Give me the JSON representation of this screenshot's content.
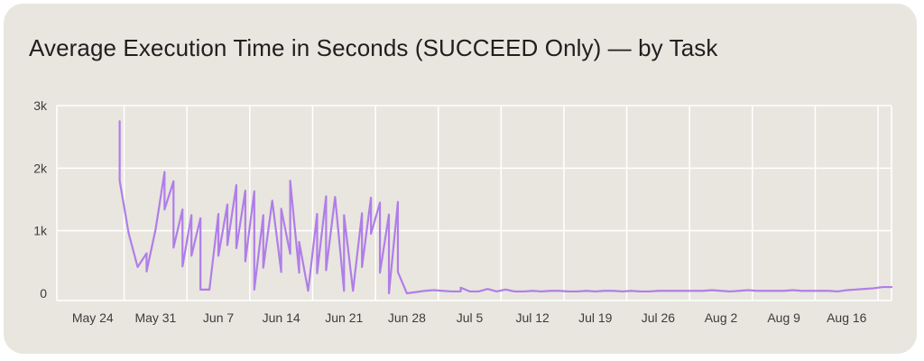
{
  "chart_data": {
    "type": "line",
    "title": "Average Execution Time in Seconds (SUCCEED Only) — by Task",
    "xlabel": "",
    "ylabel": "",
    "ylim": [
      0,
      3000
    ],
    "yticks": [
      0,
      1000,
      2000,
      3000
    ],
    "ytick_labels": [
      "0",
      "1k",
      "2k",
      "3k"
    ],
    "xlim": [
      "2024-05-20",
      "2024-08-21"
    ],
    "xticks": [
      "2024-05-24",
      "2024-05-31",
      "2024-06-07",
      "2024-06-14",
      "2024-06-21",
      "2024-06-28",
      "2024-07-05",
      "2024-07-12",
      "2024-07-19",
      "2024-07-26",
      "2024-08-02",
      "2024-08-09",
      "2024-08-16"
    ],
    "xtick_labels": [
      "May 24",
      "May 31",
      "Jun 7",
      "Jun 14",
      "Jun 21",
      "Jun 28",
      "Jul 5",
      "Jul 12",
      "Jul 19",
      "Jul 26",
      "Aug 2",
      "Aug 9",
      "Aug 16"
    ],
    "grid": true,
    "line_color": "#b07ee8",
    "series": [
      {
        "x": [
          "2024-05-27",
          "2024-05-27",
          "2024-05-28",
          "2024-05-29",
          "2024-05-30",
          "2024-05-30",
          "2024-05-31",
          "2024-06-01",
          "2024-06-01",
          "2024-06-02",
          "2024-06-02",
          "2024-06-03",
          "2024-06-03",
          "2024-06-04",
          "2024-06-04",
          "2024-06-05",
          "2024-06-05",
          "2024-06-06",
          "2024-06-07",
          "2024-06-07",
          "2024-06-08",
          "2024-06-08",
          "2024-06-09",
          "2024-06-09",
          "2024-06-10",
          "2024-06-10",
          "2024-06-11",
          "2024-06-11",
          "2024-06-12",
          "2024-06-12",
          "2024-06-13",
          "2024-06-14",
          "2024-06-14",
          "2024-06-15",
          "2024-06-15",
          "2024-06-16",
          "2024-06-16",
          "2024-06-17",
          "2024-06-18",
          "2024-06-18",
          "2024-06-19",
          "2024-06-19",
          "2024-06-20",
          "2024-06-21",
          "2024-06-21",
          "2024-06-22",
          "2024-06-23",
          "2024-06-23",
          "2024-06-24",
          "2024-06-24",
          "2024-06-25",
          "2024-06-25",
          "2024-06-26",
          "2024-06-26",
          "2024-06-27",
          "2024-06-27",
          "2024-06-28",
          "2024-06-29",
          "2024-06-30",
          "2024-07-01",
          "2024-07-02",
          "2024-07-02",
          "2024-07-03",
          "2024-07-04",
          "2024-07-04",
          "2024-07-05",
          "2024-07-05",
          "2024-07-06",
          "2024-07-07",
          "2024-07-08",
          "2024-07-09",
          "2024-07-10",
          "2024-07-11",
          "2024-07-12",
          "2024-07-13",
          "2024-07-14",
          "2024-07-15",
          "2024-07-16",
          "2024-07-17",
          "2024-07-18",
          "2024-07-19",
          "2024-07-20",
          "2024-07-21",
          "2024-07-22",
          "2024-07-23",
          "2024-07-24",
          "2024-07-25",
          "2024-07-26",
          "2024-07-27",
          "2024-07-28",
          "2024-07-29",
          "2024-07-30",
          "2024-07-31",
          "2024-08-01",
          "2024-08-02",
          "2024-08-03",
          "2024-08-04",
          "2024-08-05",
          "2024-08-06",
          "2024-08-07",
          "2024-08-08",
          "2024-08-09",
          "2024-08-10",
          "2024-08-11",
          "2024-08-12",
          "2024-08-13",
          "2024-08-14",
          "2024-08-15",
          "2024-08-16",
          "2024-08-17",
          "2024-08-18",
          "2024-08-19",
          "2024-08-20",
          "2024-08-21"
        ],
        "values": [
          2750,
          1800,
          960,
          420,
          640,
          350,
          1020,
          1940,
          1340,
          1790,
          730,
          1340,
          430,
          1250,
          600,
          1200,
          60,
          60,
          1270,
          600,
          1420,
          770,
          1730,
          720,
          1640,
          510,
          1630,
          60,
          1250,
          410,
          1480,
          340,
          1350,
          630,
          1800,
          330,
          820,
          40,
          1270,
          320,
          1550,
          370,
          1540,
          40,
          1250,
          40,
          1280,
          420,
          1530,
          950,
          1450,
          330,
          1260,
          0,
          1460,
          340,
          0,
          20,
          40,
          50,
          40,
          40,
          30,
          30,
          90,
          30,
          30,
          30,
          70,
          30,
          60,
          30,
          30,
          40,
          30,
          40,
          40,
          30,
          30,
          40,
          30,
          40,
          40,
          30,
          40,
          30,
          30,
          40,
          40,
          40,
          40,
          40,
          40,
          50,
          40,
          30,
          40,
          50,
          40,
          40,
          40,
          40,
          50,
          40,
          40,
          40,
          40,
          30,
          50,
          60,
          70,
          80,
          100,
          100
        ]
      }
    ]
  }
}
